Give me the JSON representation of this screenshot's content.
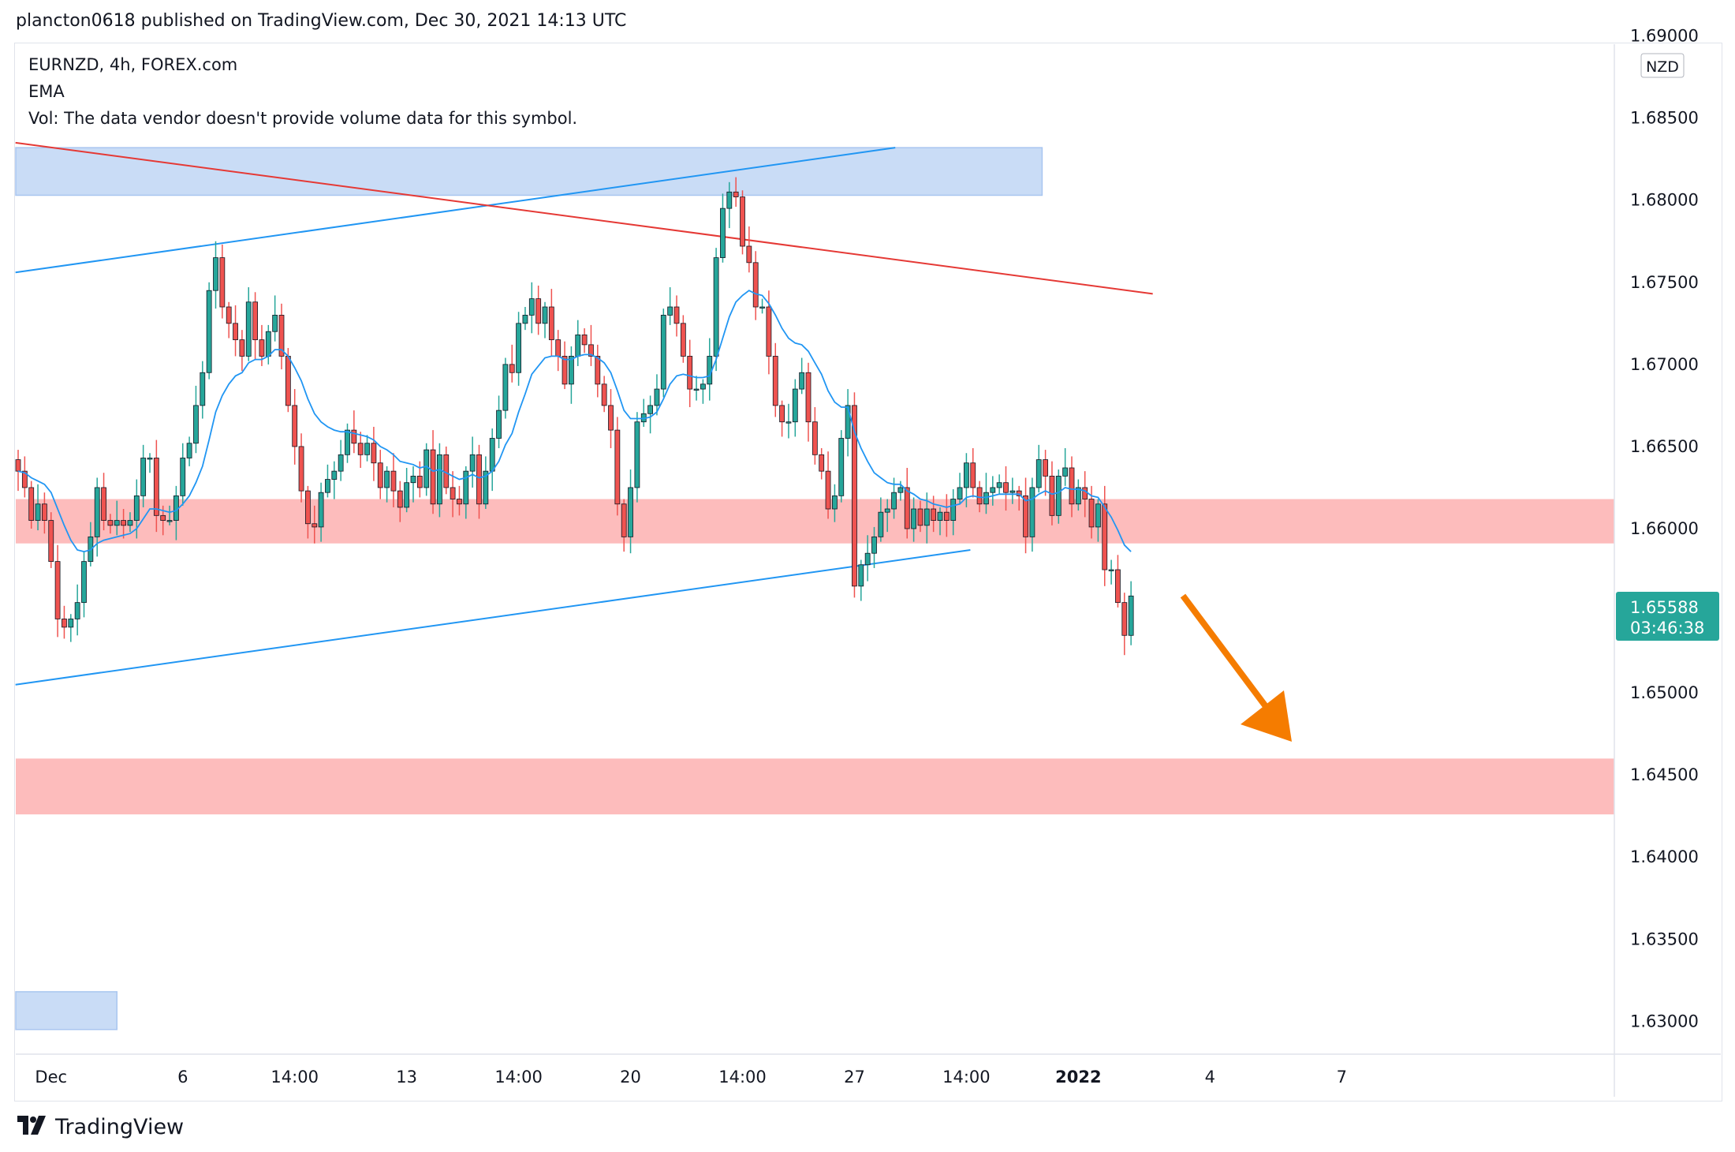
{
  "header": {
    "published": "plancton0618 published on TradingView.com, Dec 30, 2021 14:13 UTC"
  },
  "legend": {
    "symbol": "EURNZD, 4h, FOREX.com",
    "indicator": "EMA",
    "volume_note": "Vol: The data vendor doesn't provide volume data for this symbol."
  },
  "price_axis": {
    "currency": "NZD",
    "labels": [
      "1.68500",
      "1.68000",
      "1.67500",
      "1.67000",
      "1.66500",
      "1.66000",
      "1.65000",
      "1.64500",
      "1.64000",
      "1.63500",
      "1.63000"
    ],
    "top_label_partial": "1.69000"
  },
  "time_axis": {
    "labels": [
      "Dec",
      "6",
      "14:00",
      "13",
      "14:00",
      "20",
      "14:00",
      "27",
      "14:00",
      "2022",
      "4",
      "7"
    ]
  },
  "last_price": {
    "value": "1.65588",
    "countdown": "03:46:38"
  },
  "footer": {
    "brand": "TradingView"
  },
  "colors": {
    "up": "#26a69a",
    "down": "#ef5350",
    "ema": "#2196f3",
    "resistance": "#e53935",
    "zone_blue": "#c9dcf6",
    "zone_red": "#fdbcbc",
    "arrow": "#f57c00",
    "badge": "#26a69a"
  },
  "chart_data": {
    "type": "candlestick",
    "title": "EURNZD, 4h, FOREX.com",
    "ylim": [
      1.628,
      1.6895
    ],
    "x_ticks": [
      {
        "bar": 5,
        "label": "Dec"
      },
      {
        "bar": 25,
        "label": "6"
      },
      {
        "bar": 42,
        "label": "14:00"
      },
      {
        "bar": 59,
        "label": "13"
      },
      {
        "bar": 76,
        "label": "14:00"
      },
      {
        "bar": 93,
        "label": "20"
      },
      {
        "bar": 110,
        "label": "14:00"
      },
      {
        "bar": 127,
        "label": "27"
      },
      {
        "bar": 144,
        "label": "14:00"
      },
      {
        "bar": 161,
        "label": "2022"
      },
      {
        "bar": 181,
        "label": "4"
      },
      {
        "bar": 201,
        "label": "7"
      }
    ],
    "close": [
      1.6635,
      1.6625,
      1.6605,
      1.6615,
      1.6605,
      1.658,
      1.6545,
      1.654,
      1.6545,
      1.6555,
      1.658,
      1.6595,
      1.6625,
      1.6605,
      1.6602,
      1.6605,
      1.6602,
      1.6605,
      1.662,
      1.6643,
      1.6643,
      1.6608,
      1.6605,
      1.6605,
      1.662,
      1.6643,
      1.6652,
      1.6675,
      1.6695,
      1.6745,
      1.6765,
      1.6735,
      1.6725,
      1.6715,
      1.6705,
      1.6738,
      1.6715,
      1.6705,
      1.672,
      1.673,
      1.6705,
      1.6675,
      1.665,
      1.6623,
      1.6603,
      1.6601,
      1.6622,
      1.663,
      1.6635,
      1.6645,
      1.666,
      1.6652,
      1.6645,
      1.6652,
      1.664,
      1.6625,
      1.6635,
      1.6623,
      1.6613,
      1.6628,
      1.6632,
      1.6625,
      1.6648,
      1.6615,
      1.6645,
      1.6625,
      1.6618,
      1.6615,
      1.6635,
      1.6645,
      1.6615,
      1.6635,
      1.6655,
      1.6672,
      1.67,
      1.6695,
      1.6725,
      1.673,
      1.674,
      1.6725,
      1.6735,
      1.6715,
      1.6705,
      1.6688,
      1.6705,
      1.6718,
      1.6712,
      1.6705,
      1.6688,
      1.6675,
      1.666,
      1.6615,
      1.6595,
      1.6625,
      1.6665,
      1.667,
      1.6675,
      1.6685,
      1.673,
      1.6735,
      1.6725,
      1.6705,
      1.6685,
      1.6685,
      1.6688,
      1.6705,
      1.6765,
      1.6795,
      1.6805,
      1.6802,
      1.6772,
      1.6762,
      1.6735,
      1.6735,
      1.6705,
      1.6675,
      1.6665,
      1.6665,
      1.6685,
      1.6695,
      1.6665,
      1.6645,
      1.6635,
      1.6612,
      1.662,
      1.6655,
      1.6675,
      1.6565,
      1.6578,
      1.6585,
      1.6595,
      1.661,
      1.6612,
      1.6622,
      1.6625,
      1.66,
      1.6612,
      1.6602,
      1.6612,
      1.6605,
      1.661,
      1.6605,
      1.6618,
      1.6625,
      1.664,
      1.6625,
      1.6615,
      1.6622,
      1.6625,
      1.6628,
      1.6622,
      1.6623,
      1.662,
      1.6595,
      1.6625,
      1.6642,
      1.6632,
      1.6608,
      1.6632,
      1.6637,
      1.6615,
      1.6625,
      1.6618,
      1.6601,
      1.6615,
      1.6575,
      1.6575,
      1.6555,
      1.6535,
      1.6559
    ],
    "ema": [
      1.6635,
      1.6634,
      1.6631,
      1.6629,
      1.6627,
      1.6622,
      1.6612,
      1.6602,
      1.6593,
      1.6587,
      1.6586,
      1.6587,
      1.6591,
      1.6593,
      1.6594,
      1.6595,
      1.6596,
      1.6597,
      1.66,
      1.6606,
      1.6612,
      1.6612,
      1.6611,
      1.661,
      1.6611,
      1.6615,
      1.662,
      1.6628,
      1.6638,
      1.6654,
      1.6671,
      1.6681,
      1.6688,
      1.6693,
      1.6695,
      1.6701,
      1.6703,
      1.6703,
      1.6705,
      1.6709,
      1.6709,
      1.6705,
      1.6698,
      1.669,
      1.6679,
      1.667,
      1.6665,
      1.6662,
      1.666,
      1.6659,
      1.6659,
      1.6658,
      1.6657,
      1.6656,
      1.6654,
      1.665,
      1.6648,
      1.6645,
      1.6641,
      1.664,
      1.6639,
      1.6637,
      1.6638,
      1.6635,
      1.6636,
      1.6634,
      1.6632,
      1.663,
      1.6631,
      1.6633,
      1.6631,
      1.6632,
      1.6635,
      1.6641,
      1.6651,
      1.6658,
      1.6671,
      1.6682,
      1.6694,
      1.6699,
      1.6704,
      1.6705,
      1.6705,
      1.6703,
      1.6703,
      1.6705,
      1.6706,
      1.6706,
      1.6704,
      1.6701,
      1.6695,
      1.6684,
      1.6672,
      1.6667,
      1.6667,
      1.6667,
      1.6668,
      1.6671,
      1.6679,
      1.6688,
      1.6693,
      1.6694,
      1.6693,
      1.6692,
      1.6692,
      1.6693,
      1.6703,
      1.6716,
      1.6729,
      1.6738,
      1.6742,
      1.6745,
      1.6743,
      1.6742,
      1.6737,
      1.673,
      1.6722,
      1.6716,
      1.6713,
      1.6712,
      1.6708,
      1.6701,
      1.6694,
      1.6684,
      1.6677,
      1.6674,
      1.6674,
      1.6659,
      1.6649,
      1.6641,
      1.6634,
      1.6631,
      1.6628,
      1.6627,
      1.6627,
      1.6623,
      1.6621,
      1.6618,
      1.6617,
      1.6615,
      1.6614,
      1.6613,
      1.6614,
      1.6615,
      1.6619,
      1.662,
      1.6619,
      1.6619,
      1.662,
      1.6621,
      1.6621,
      1.6621,
      1.6621,
      1.6617,
      1.6618,
      1.6621,
      1.6623,
      1.6621,
      1.6622,
      1.6625,
      1.6624,
      1.6624,
      1.6623,
      1.662,
      1.6619,
      1.6613,
      1.6607,
      1.6599,
      1.659,
      1.6586
    ]
  }
}
